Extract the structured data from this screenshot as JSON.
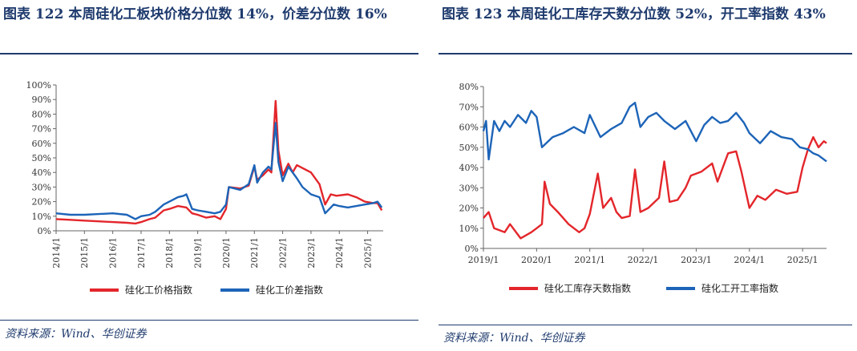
{
  "figures": [
    {
      "title": "图表 122   本周硅化工板块价格分位数 14%，价差分位数 16%",
      "source": "资料来源：Wind、华创证券"
    },
    {
      "title": "图表 123   本周硅化工库存天数分位数 52%，开工率指数 43%",
      "source": "资料来源：Wind、华创证券"
    }
  ],
  "chart_data": [
    {
      "type": "line",
      "title": "",
      "ylim": [
        0,
        100
      ],
      "y_ticks": [
        "0%",
        "10%",
        "20%",
        "30%",
        "40%",
        "50%",
        "60%",
        "70%",
        "80%",
        "90%",
        "100%"
      ],
      "x_range": [
        2014.0,
        2025.55
      ],
      "x_ticks": [
        "2014/1",
        "2015/1",
        "2016/1",
        "2017/1",
        "2018/1",
        "2019/1",
        "2020/1",
        "2021/1",
        "2022/1",
        "2023/1",
        "2024/1",
        "2025/1"
      ],
      "legend_position": "bottom",
      "series": [
        {
          "name": "硅化工价格指数",
          "color": "#e3262b",
          "points": [
            [
              2014.0,
              8
            ],
            [
              2014.5,
              7.5
            ],
            [
              2015.0,
              7
            ],
            [
              2015.5,
              6.5
            ],
            [
              2016.0,
              6
            ],
            [
              2016.5,
              5.5
            ],
            [
              2016.8,
              5
            ],
            [
              2017.0,
              6
            ],
            [
              2017.3,
              8
            ],
            [
              2017.5,
              9
            ],
            [
              2017.8,
              14
            ],
            [
              2018.0,
              15
            ],
            [
              2018.3,
              17
            ],
            [
              2018.6,
              16
            ],
            [
              2018.8,
              12
            ],
            [
              2019.0,
              11
            ],
            [
              2019.3,
              9
            ],
            [
              2019.6,
              10
            ],
            [
              2019.8,
              8
            ],
            [
              2020.0,
              15
            ],
            [
              2020.1,
              30
            ],
            [
              2020.5,
              29
            ],
            [
              2020.8,
              31
            ],
            [
              2021.0,
              44
            ],
            [
              2021.1,
              35
            ],
            [
              2021.3,
              38
            ],
            [
              2021.5,
              42
            ],
            [
              2021.6,
              40
            ],
            [
              2021.75,
              89
            ],
            [
              2021.85,
              55
            ],
            [
              2022.0,
              38
            ],
            [
              2022.2,
              46
            ],
            [
              2022.35,
              40
            ],
            [
              2022.5,
              45
            ],
            [
              2022.7,
              43
            ],
            [
              2023.0,
              40
            ],
            [
              2023.3,
              32
            ],
            [
              2023.5,
              18
            ],
            [
              2023.7,
              25
            ],
            [
              2023.9,
              24
            ],
            [
              2024.3,
              25
            ],
            [
              2024.6,
              23
            ],
            [
              2024.9,
              20
            ],
            [
              2025.2,
              19
            ],
            [
              2025.35,
              19
            ],
            [
              2025.5,
              14
            ]
          ]
        },
        {
          "name": "硅化工价差指数",
          "color": "#1d64b8",
          "points": [
            [
              2014.0,
              12
            ],
            [
              2014.5,
              11
            ],
            [
              2015.0,
              11
            ],
            [
              2015.5,
              11.5
            ],
            [
              2016.0,
              12
            ],
            [
              2016.5,
              11
            ],
            [
              2016.8,
              8
            ],
            [
              2017.0,
              10
            ],
            [
              2017.3,
              11
            ],
            [
              2017.5,
              13
            ],
            [
              2017.8,
              18
            ],
            [
              2018.0,
              20
            ],
            [
              2018.3,
              23
            ],
            [
              2018.5,
              24
            ],
            [
              2018.6,
              25
            ],
            [
              2018.8,
              15
            ],
            [
              2019.0,
              14
            ],
            [
              2019.3,
              13
            ],
            [
              2019.6,
              12
            ],
            [
              2019.8,
              13
            ],
            [
              2020.0,
              18
            ],
            [
              2020.1,
              30
            ],
            [
              2020.5,
              28
            ],
            [
              2020.8,
              32
            ],
            [
              2021.0,
              45
            ],
            [
              2021.1,
              33
            ],
            [
              2021.3,
              40
            ],
            [
              2021.5,
              44
            ],
            [
              2021.6,
              42
            ],
            [
              2021.75,
              74
            ],
            [
              2021.85,
              47
            ],
            [
              2022.0,
              34
            ],
            [
              2022.2,
              44
            ],
            [
              2022.35,
              40
            ],
            [
              2022.5,
              36
            ],
            [
              2022.7,
              30
            ],
            [
              2023.0,
              25
            ],
            [
              2023.3,
              23
            ],
            [
              2023.5,
              12
            ],
            [
              2023.8,
              18
            ],
            [
              2024.0,
              17
            ],
            [
              2024.3,
              16
            ],
            [
              2024.6,
              17
            ],
            [
              2024.9,
              18
            ],
            [
              2025.2,
              19
            ],
            [
              2025.35,
              20
            ],
            [
              2025.5,
              16
            ]
          ]
        }
      ]
    },
    {
      "type": "line",
      "title": "",
      "ylim": [
        0,
        80
      ],
      "y_ticks": [
        "0%",
        "10%",
        "20%",
        "30%",
        "40%",
        "50%",
        "60%",
        "70%",
        "80%"
      ],
      "x_range": [
        2019.0,
        2025.45
      ],
      "x_ticks": [
        "2019/1",
        "2020/1",
        "2021/1",
        "2022/1",
        "2023/1",
        "2024/1",
        "2025/1"
      ],
      "legend_position": "bottom",
      "series": [
        {
          "name": "硅化工库存天数指数",
          "color": "#e3262b",
          "points": [
            [
              2019.0,
              15
            ],
            [
              2019.1,
              18
            ],
            [
              2019.2,
              10
            ],
            [
              2019.4,
              8
            ],
            [
              2019.5,
              12
            ],
            [
              2019.7,
              5
            ],
            [
              2019.9,
              8
            ],
            [
              2020.0,
              10
            ],
            [
              2020.1,
              12
            ],
            [
              2020.15,
              33
            ],
            [
              2020.25,
              22
            ],
            [
              2020.4,
              18
            ],
            [
              2020.6,
              12
            ],
            [
              2020.8,
              8
            ],
            [
              2020.9,
              10
            ],
            [
              2021.0,
              17
            ],
            [
              2021.15,
              37
            ],
            [
              2021.25,
              20
            ],
            [
              2021.4,
              25
            ],
            [
              2021.5,
              18
            ],
            [
              2021.6,
              15
            ],
            [
              2021.75,
              16
            ],
            [
              2021.85,
              39
            ],
            [
              2021.95,
              18
            ],
            [
              2022.1,
              20
            ],
            [
              2022.3,
              25
            ],
            [
              2022.4,
              43
            ],
            [
              2022.5,
              23
            ],
            [
              2022.65,
              24
            ],
            [
              2022.8,
              30
            ],
            [
              2022.9,
              36
            ],
            [
              2023.1,
              38
            ],
            [
              2023.3,
              42
            ],
            [
              2023.4,
              33
            ],
            [
              2023.6,
              47
            ],
            [
              2023.75,
              48
            ],
            [
              2023.85,
              38
            ],
            [
              2024.0,
              20
            ],
            [
              2024.15,
              26
            ],
            [
              2024.3,
              24
            ],
            [
              2024.5,
              29
            ],
            [
              2024.7,
              27
            ],
            [
              2024.9,
              28
            ],
            [
              2025.0,
              40
            ],
            [
              2025.1,
              49
            ],
            [
              2025.2,
              55
            ],
            [
              2025.3,
              50
            ],
            [
              2025.4,
              53
            ],
            [
              2025.45,
              52
            ]
          ]
        },
        {
          "name": "硅化工开工率指数",
          "color": "#1d64b8",
          "points": [
            [
              2019.0,
              58
            ],
            [
              2019.05,
              63
            ],
            [
              2019.1,
              44
            ],
            [
              2019.2,
              63
            ],
            [
              2019.3,
              58
            ],
            [
              2019.4,
              63
            ],
            [
              2019.5,
              60
            ],
            [
              2019.65,
              66
            ],
            [
              2019.8,
              62
            ],
            [
              2019.9,
              68
            ],
            [
              2020.0,
              65
            ],
            [
              2020.1,
              50
            ],
            [
              2020.3,
              55
            ],
            [
              2020.5,
              57
            ],
            [
              2020.7,
              60
            ],
            [
              2020.9,
              57
            ],
            [
              2021.0,
              66
            ],
            [
              2021.2,
              55
            ],
            [
              2021.4,
              59
            ],
            [
              2021.6,
              62
            ],
            [
              2021.75,
              70
            ],
            [
              2021.85,
              72
            ],
            [
              2021.95,
              60
            ],
            [
              2022.1,
              65
            ],
            [
              2022.25,
              67
            ],
            [
              2022.4,
              63
            ],
            [
              2022.6,
              59
            ],
            [
              2022.8,
              63
            ],
            [
              2023.0,
              53
            ],
            [
              2023.15,
              61
            ],
            [
              2023.3,
              65
            ],
            [
              2023.45,
              62
            ],
            [
              2023.6,
              63
            ],
            [
              2023.75,
              67
            ],
            [
              2023.9,
              62
            ],
            [
              2024.0,
              57
            ],
            [
              2024.2,
              52
            ],
            [
              2024.4,
              58
            ],
            [
              2024.6,
              55
            ],
            [
              2024.8,
              54
            ],
            [
              2024.95,
              50
            ],
            [
              2025.1,
              49
            ],
            [
              2025.2,
              47
            ],
            [
              2025.3,
              46
            ],
            [
              2025.45,
              43
            ]
          ]
        }
      ]
    }
  ]
}
